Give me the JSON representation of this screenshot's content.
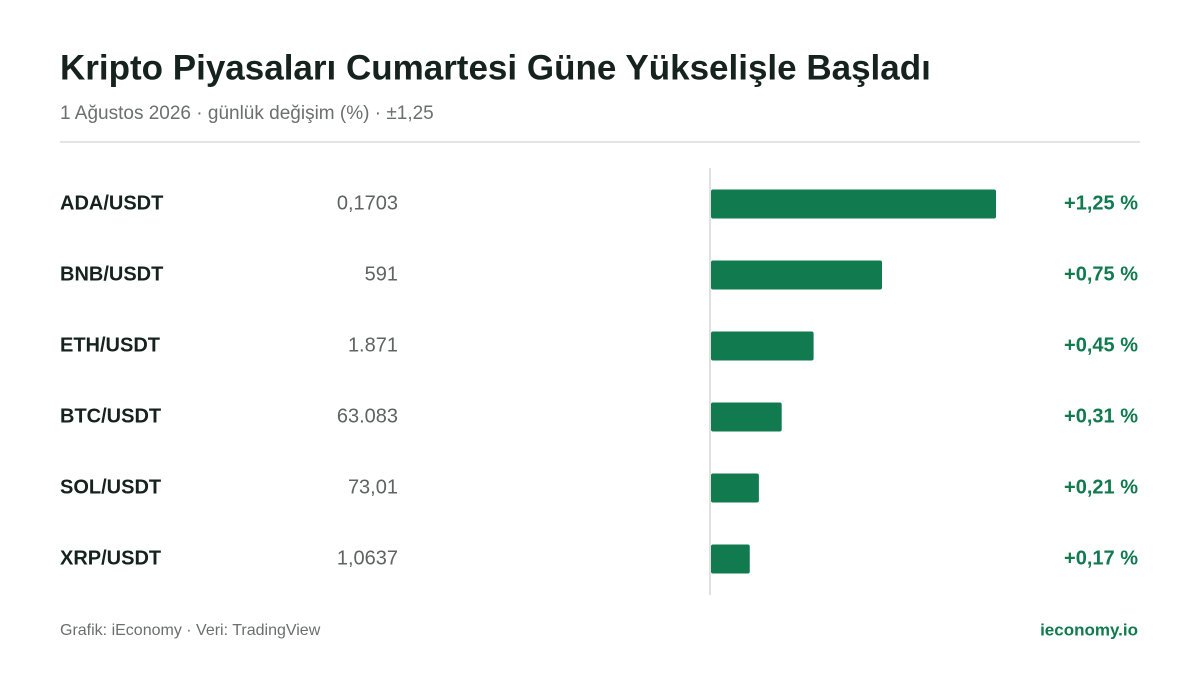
{
  "chart_data": {
    "type": "bar",
    "orientation": "horizontal",
    "title": "Kripto Piyasaları Cumartesi Güne Yükselişle Başladı",
    "subtitle": "1 Ağustos 2026 · günlük değişim (%) · ±1,25",
    "categories": [
      "ADA/USDT",
      "BNB/USDT",
      "ETH/USDT",
      "BTC/USDT",
      "SOL/USDT",
      "XRP/USDT"
    ],
    "prices": [
      "0,1703",
      "591",
      "1.871",
      "63.083",
      "73,01",
      "1,0637"
    ],
    "values": [
      1.25,
      0.75,
      0.45,
      0.31,
      0.21,
      0.17
    ],
    "value_labels": [
      "+1,25 %",
      "+0,75 %",
      "+0,45 %",
      "+0,31 %",
      "+0,21 %",
      "+0,17 %"
    ],
    "color": "#117a4f",
    "xlim": [
      -1.25,
      1.25
    ],
    "source": "Grafik: iEconomy · Veri: TradingView",
    "brand": "ieconomy.io"
  }
}
